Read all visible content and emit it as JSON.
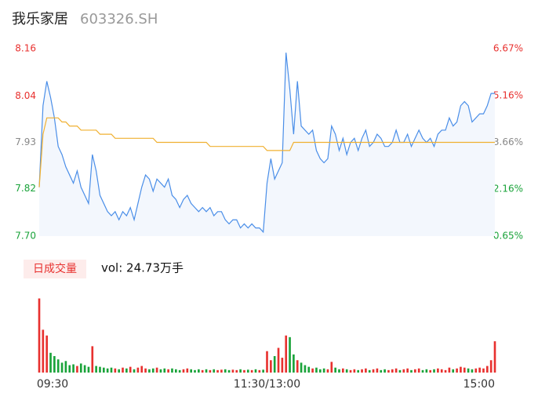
{
  "chart_data": {
    "type": "intraday",
    "title": "我乐家居",
    "subtitle": "603326.SH",
    "volume_button": "日成交量",
    "volume_label": "vol: 24.73万手",
    "xlim": [
      0,
      240
    ],
    "xticks": [
      {
        "value": 0,
        "label": "09:30"
      },
      {
        "value": 120,
        "label": "11:30/13:00"
      },
      {
        "value": 240,
        "label": "15:00"
      }
    ],
    "ylim": [
      7.7,
      8.16
    ],
    "yticks": [
      {
        "value": 8.16,
        "label": "8.16"
      },
      {
        "value": 8.044,
        "label": "8.04"
      },
      {
        "value": 7.93,
        "label": "7.93"
      },
      {
        "value": 7.816,
        "label": "7.82"
      },
      {
        "value": 7.7,
        "label": "7.70"
      }
    ],
    "y2lim": [
      0.65,
      6.67
    ],
    "y2ticks": [
      {
        "value": 6.67,
        "label": "6.67%"
      },
      {
        "value": 5.16,
        "label": "5.16%"
      },
      {
        "value": 3.66,
        "label": "3.66%"
      },
      {
        "value": 2.16,
        "label": "2.16%"
      },
      {
        "value": 0.65,
        "label": "0.65%"
      }
    ],
    "volume_ylim": [
      0,
      10000
    ],
    "x": [
      0,
      2,
      4,
      6,
      8,
      10,
      12,
      14,
      16,
      18,
      20,
      22,
      24,
      26,
      28,
      30,
      32,
      34,
      36,
      38,
      40,
      42,
      44,
      46,
      48,
      50,
      52,
      54,
      56,
      58,
      60,
      62,
      64,
      66,
      68,
      70,
      72,
      74,
      76,
      78,
      80,
      82,
      84,
      86,
      88,
      90,
      92,
      94,
      96,
      98,
      100,
      102,
      104,
      106,
      108,
      110,
      112,
      114,
      116,
      118,
      120,
      122,
      124,
      126,
      128,
      130,
      132,
      134,
      136,
      138,
      140,
      142,
      144,
      146,
      148,
      150,
      152,
      154,
      156,
      158,
      160,
      162,
      164,
      166,
      168,
      170,
      172,
      174,
      176,
      178,
      180,
      182,
      184,
      186,
      188,
      190,
      192,
      194,
      196,
      198,
      200,
      202,
      204,
      206,
      208,
      210,
      212,
      214,
      216,
      218,
      220,
      222,
      224,
      226,
      228,
      230,
      232,
      234,
      236,
      238,
      240
    ],
    "series": [
      {
        "name": "price",
        "color": "#4a8ee8",
        "values": [
          7.82,
          8.02,
          8.08,
          8.04,
          7.99,
          7.92,
          7.9,
          7.87,
          7.85,
          7.83,
          7.86,
          7.82,
          7.8,
          7.78,
          7.9,
          7.86,
          7.8,
          7.78,
          7.76,
          7.75,
          7.76,
          7.74,
          7.76,
          7.75,
          7.77,
          7.74,
          7.78,
          7.82,
          7.85,
          7.84,
          7.81,
          7.84,
          7.83,
          7.82,
          7.84,
          7.8,
          7.79,
          7.77,
          7.79,
          7.8,
          7.78,
          7.77,
          7.76,
          7.77,
          7.76,
          7.77,
          7.75,
          7.76,
          7.76,
          7.74,
          7.73,
          7.74,
          7.74,
          7.72,
          7.73,
          7.72,
          7.73,
          7.72,
          7.72,
          7.71,
          7.83,
          7.89,
          7.84,
          7.86,
          7.88,
          8.15,
          8.06,
          7.95,
          8.08,
          7.97,
          7.96,
          7.95,
          7.96,
          7.91,
          7.89,
          7.88,
          7.89,
          7.97,
          7.95,
          7.91,
          7.94,
          7.9,
          7.93,
          7.94,
          7.91,
          7.94,
          7.96,
          7.92,
          7.93,
          7.95,
          7.94,
          7.92,
          7.92,
          7.93,
          7.96,
          7.93,
          7.93,
          7.95,
          7.92,
          7.94,
          7.96,
          7.94,
          7.93,
          7.94,
          7.92,
          7.95,
          7.96,
          7.96,
          7.99,
          7.97,
          7.98,
          8.02,
          8.03,
          8.02,
          7.98,
          7.99,
          8.0,
          8.0,
          8.02,
          8.05,
          8.05
        ]
      },
      {
        "name": "average",
        "color": "#f0b030",
        "values": [
          7.82,
          7.95,
          7.99,
          7.99,
          7.99,
          7.99,
          7.98,
          7.98,
          7.97,
          7.97,
          7.97,
          7.96,
          7.96,
          7.96,
          7.96,
          7.96,
          7.95,
          7.95,
          7.95,
          7.95,
          7.94,
          7.94,
          7.94,
          7.94,
          7.94,
          7.94,
          7.94,
          7.94,
          7.94,
          7.94,
          7.94,
          7.93,
          7.93,
          7.93,
          7.93,
          7.93,
          7.93,
          7.93,
          7.93,
          7.93,
          7.93,
          7.93,
          7.93,
          7.93,
          7.93,
          7.92,
          7.92,
          7.92,
          7.92,
          7.92,
          7.92,
          7.92,
          7.92,
          7.92,
          7.92,
          7.92,
          7.92,
          7.92,
          7.92,
          7.92,
          7.91,
          7.91,
          7.91,
          7.91,
          7.91,
          7.91,
          7.91,
          7.93,
          7.93,
          7.93,
          7.93,
          7.93,
          7.93,
          7.93,
          7.93,
          7.93,
          7.93,
          7.93,
          7.93,
          7.93,
          7.93,
          7.93,
          7.93,
          7.93,
          7.93,
          7.93,
          7.93,
          7.93,
          7.93,
          7.93,
          7.93,
          7.93,
          7.93,
          7.93,
          7.93,
          7.93,
          7.93,
          7.93,
          7.93,
          7.93,
          7.93,
          7.93,
          7.93,
          7.93,
          7.93,
          7.93,
          7.93,
          7.93,
          7.93,
          7.93,
          7.93,
          7.93,
          7.93,
          7.93,
          7.93,
          7.93,
          7.93,
          7.93,
          7.93,
          7.93,
          7.93
        ]
      }
    ],
    "volume": [
      9000,
      5200,
      4500,
      2400,
      2000,
      1600,
      1200,
      1400,
      900,
      1000,
      800,
      1100,
      900,
      700,
      3200,
      800,
      700,
      600,
      500,
      600,
      500,
      400,
      600,
      500,
      700,
      400,
      600,
      800,
      500,
      400,
      500,
      600,
      400,
      500,
      400,
      500,
      400,
      300,
      400,
      500,
      400,
      300,
      400,
      300,
      400,
      300,
      400,
      300,
      350,
      400,
      300,
      350,
      300,
      400,
      300,
      350,
      300,
      400,
      300,
      350,
      2600,
      1500,
      2000,
      3000,
      1800,
      4500,
      4300,
      2200,
      1500,
      1200,
      900,
      700,
      500,
      600,
      400,
      500,
      400,
      1300,
      600,
      400,
      500,
      400,
      300,
      400,
      300,
      400,
      500,
      300,
      400,
      500,
      300,
      400,
      300,
      400,
      500,
      300,
      400,
      500,
      300,
      400,
      500,
      300,
      400,
      300,
      400,
      500,
      400,
      300,
      600,
      400,
      500,
      700,
      600,
      500,
      400,
      500,
      600,
      500,
      800,
      1500,
      3800
    ],
    "up_color": "#e8312f",
    "down_color": "#1aa33a"
  }
}
